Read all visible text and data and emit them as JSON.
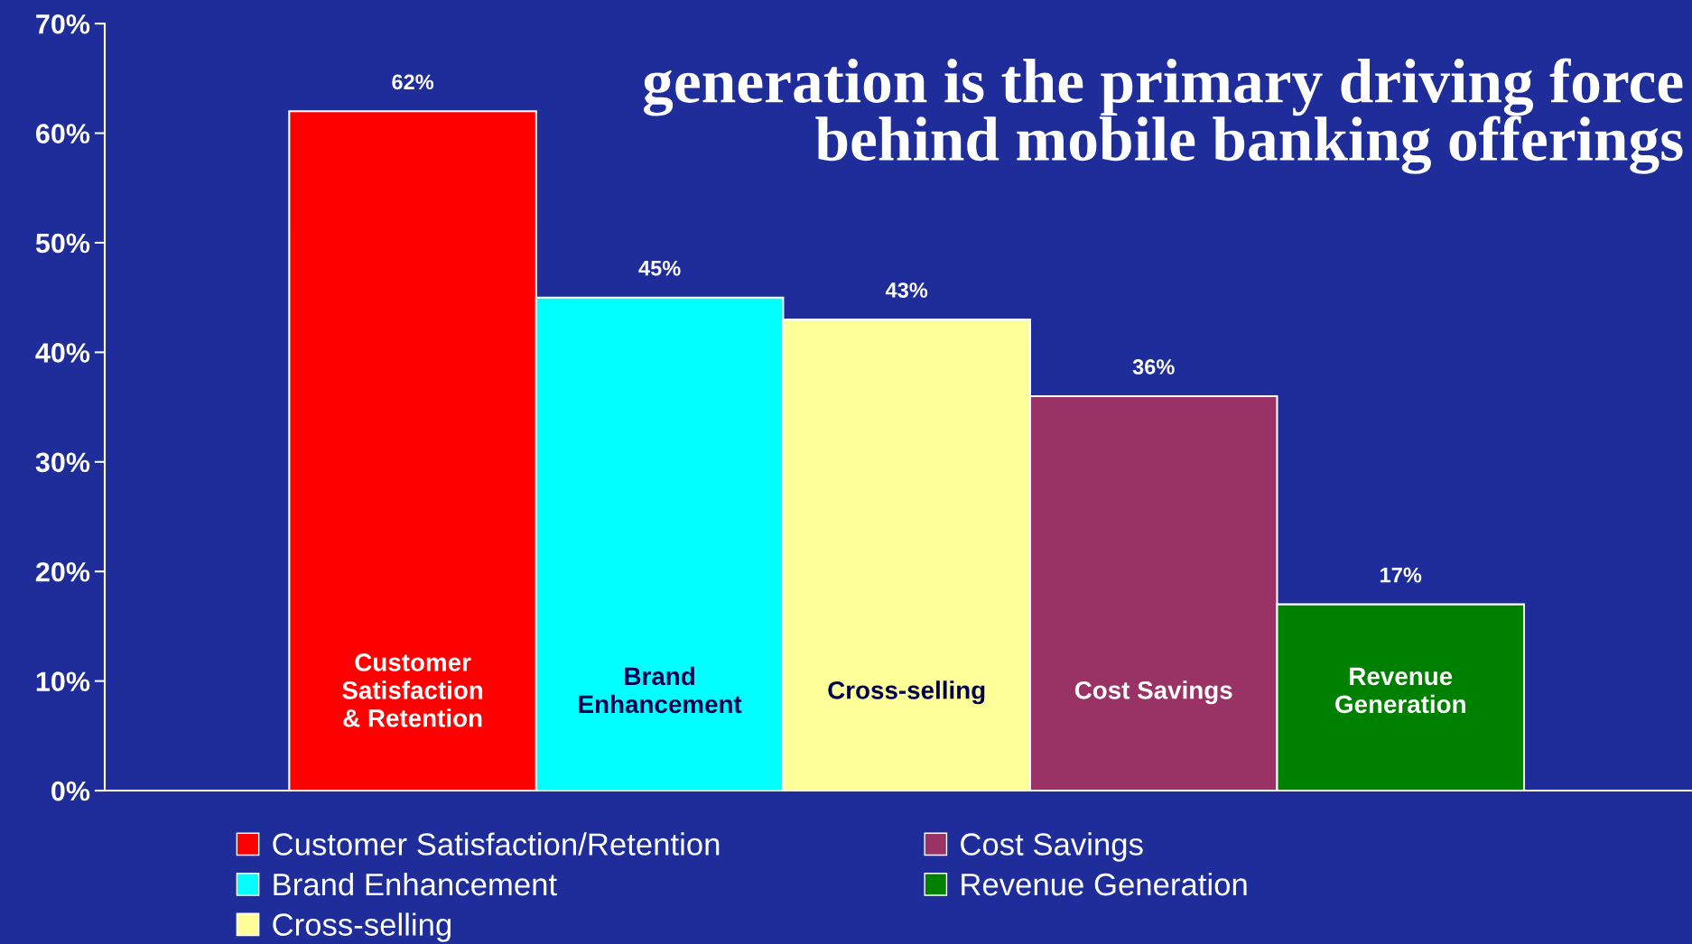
{
  "chart_data": {
    "type": "bar",
    "title": "generation is the primary driving force\nbehind mobile banking offerings",
    "categories": [
      "Customer\nSatisfaction\n& Retention",
      "Brand\nEnhancement",
      "Cross-selling",
      "Cost Savings",
      "Revenue\nGeneration"
    ],
    "series": [
      {
        "name": "Customer Satisfaction/Retention",
        "color": "#ff0000",
        "values": [
          62,
          null,
          null,
          null,
          null
        ],
        "value_labels": [
          "62%",
          null,
          null,
          null,
          null
        ]
      },
      {
        "name": "Brand Enhancement",
        "color": "#00ffff",
        "values": [
          null,
          45,
          null,
          null,
          null
        ],
        "value_labels": [
          null,
          "45%",
          null,
          null,
          null
        ]
      },
      {
        "name": "Cross-selling",
        "color": "#ffff99",
        "values": [
          null,
          null,
          43,
          null,
          null
        ],
        "value_labels": [
          null,
          null,
          "43%",
          null,
          null
        ]
      },
      {
        "name": "Cost Savings",
        "color": "#993366",
        "values": [
          null,
          null,
          null,
          36,
          null
        ],
        "value_labels": [
          null,
          null,
          null,
          "36%",
          null
        ]
      },
      {
        "name": "Revenue Generation",
        "color": "#008000",
        "values": [
          null,
          null,
          null,
          null,
          17
        ],
        "value_labels": [
          null,
          null,
          null,
          null,
          "17%"
        ]
      }
    ],
    "ylim": [
      0,
      70
    ],
    "yticks": [
      {
        "value": 0,
        "label": "0%"
      },
      {
        "value": 10,
        "label": "10%"
      },
      {
        "value": 20,
        "label": "20%"
      },
      {
        "value": 30,
        "label": "30%"
      },
      {
        "value": 40,
        "label": "40%"
      },
      {
        "value": 50,
        "label": "50%"
      },
      {
        "value": 60,
        "label": "60%"
      },
      {
        "value": 70,
        "label": "70%"
      }
    ],
    "grid": false,
    "legend": "bottom"
  }
}
